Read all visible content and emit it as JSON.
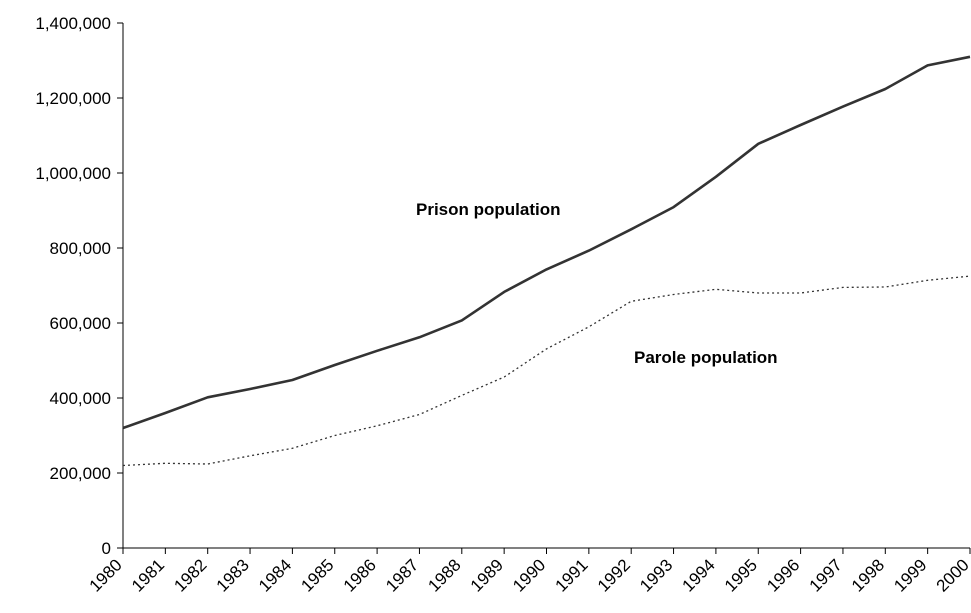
{
  "chart_data": {
    "type": "line",
    "title": "",
    "xlabel": "",
    "ylabel": "",
    "categories": [
      "1980",
      "1981",
      "1982",
      "1983",
      "1984",
      "1985",
      "1986",
      "1987",
      "1988",
      "1989",
      "1990",
      "1991",
      "1992",
      "1993",
      "1994",
      "1995",
      "1996",
      "1997",
      "1998",
      "1999",
      "2000"
    ],
    "ylim": [
      0,
      1400000
    ],
    "yticks": [
      0,
      200000,
      400000,
      600000,
      800000,
      1000000,
      1200000,
      1400000
    ],
    "ytick_labels": [
      "0",
      "200,000",
      "400,000",
      "600,000",
      "800,000",
      "1,000,000",
      "1,200,000",
      "1,400,000"
    ],
    "grid": false,
    "series": [
      {
        "name": "Prison population",
        "style": "solid",
        "color": "#333333",
        "values": [
          320000,
          360000,
          402000,
          424000,
          448000,
          488000,
          526000,
          562000,
          607000,
          683000,
          743000,
          793000,
          850000,
          909000,
          990000,
          1078000,
          1128000,
          1177000,
          1224000,
          1287000,
          1310000
        ]
      },
      {
        "name": "Parole population",
        "style": "dotted",
        "color": "#333333",
        "values": [
          220000,
          226000,
          224000,
          246000,
          266000,
          300000,
          326000,
          356000,
          407000,
          456000,
          531000,
          590000,
          658000,
          676000,
          690000,
          680000,
          680000,
          695000,
          696000,
          714000,
          725000
        ]
      }
    ]
  }
}
